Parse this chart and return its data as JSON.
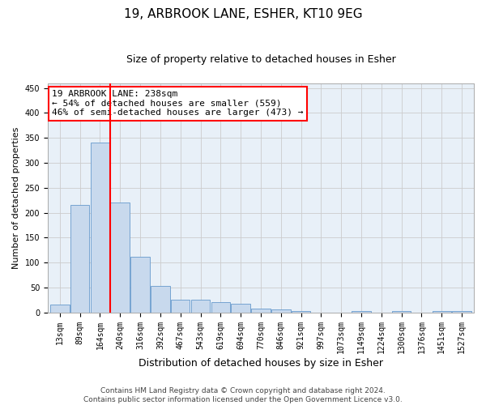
{
  "title": "19, ARBROOK LANE, ESHER, KT10 9EG",
  "subtitle": "Size of property relative to detached houses in Esher",
  "xlabel": "Distribution of detached houses by size in Esher",
  "ylabel": "Number of detached properties",
  "footer_line1": "Contains HM Land Registry data © Crown copyright and database right 2024.",
  "footer_line2": "Contains public sector information licensed under the Open Government Licence v3.0.",
  "categories": [
    "13sqm",
    "89sqm",
    "164sqm",
    "240sqm",
    "316sqm",
    "392sqm",
    "467sqm",
    "543sqm",
    "619sqm",
    "694sqm",
    "770sqm",
    "846sqm",
    "921sqm",
    "997sqm",
    "1073sqm",
    "1149sqm",
    "1224sqm",
    "1300sqm",
    "1376sqm",
    "1451sqm",
    "1527sqm"
  ],
  "values": [
    15,
    215,
    340,
    220,
    112,
    53,
    25,
    25,
    20,
    18,
    8,
    6,
    3,
    0,
    0,
    2,
    0,
    2,
    0,
    2,
    2
  ],
  "bar_color": "#c8d9ed",
  "bar_edge_color": "#6699cc",
  "vline_x": 2.5,
  "annotation_text_line1": "19 ARBROOK LANE: 238sqm",
  "annotation_text_line2": "← 54% of detached houses are smaller (559)",
  "annotation_text_line3": "46% of semi-detached houses are larger (473) →",
  "annotation_box_color": "white",
  "annotation_box_edge_color": "red",
  "vline_color": "red",
  "ylim": [
    0,
    460
  ],
  "yticks": [
    0,
    50,
    100,
    150,
    200,
    250,
    300,
    350,
    400,
    450
  ],
  "background_color": "white",
  "grid_color": "#cccccc",
  "title_fontsize": 11,
  "subtitle_fontsize": 9,
  "xlabel_fontsize": 9,
  "ylabel_fontsize": 8,
  "tick_fontsize": 7,
  "annotation_fontsize": 8,
  "footer_fontsize": 6.5
}
